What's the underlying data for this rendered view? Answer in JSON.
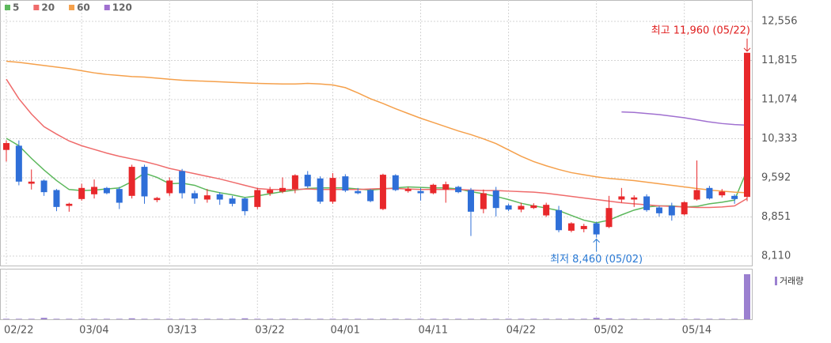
{
  "chart_data": {
    "type": "candlestick",
    "categories": [
      "02/22",
      null,
      null,
      null,
      null,
      null,
      "03/04",
      null,
      null,
      null,
      null,
      null,
      null,
      "03/13",
      null,
      null,
      null,
      null,
      null,
      null,
      "03/22",
      null,
      null,
      null,
      null,
      null,
      "04/01",
      null,
      null,
      null,
      null,
      null,
      null,
      "04/11",
      null,
      null,
      null,
      null,
      null,
      null,
      "04/22",
      null,
      null,
      null,
      null,
      null,
      null,
      "05/02",
      null,
      null,
      null,
      null,
      null,
      null,
      "05/14",
      null,
      null,
      null,
      null,
      null
    ],
    "open": [
      10120,
      10200,
      9480,
      9540,
      9360,
      9060,
      9190,
      9280,
      9400,
      9380,
      9250,
      9800,
      9170,
      9300,
      9720,
      9300,
      9180,
      9280,
      9200,
      9200,
      9040,
      9300,
      9330,
      9380,
      9650,
      9580,
      9140,
      9620,
      9340,
      9360,
      9000,
      9640,
      9340,
      9340,
      9300,
      9370,
      9420,
      9360,
      9000,
      9350,
      9070,
      8990,
      9020,
      8880,
      8980,
      8590,
      8620,
      8730,
      8660,
      9180,
      9180,
      9240,
      9030,
      9060,
      8900,
      9180,
      9400,
      9260,
      9250,
      9230
    ],
    "high": [
      10300,
      10300,
      9750,
      9560,
      9380,
      9120,
      9480,
      9560,
      9420,
      9420,
      9840,
      9840,
      9230,
      9600,
      9760,
      9350,
      9380,
      9320,
      9250,
      9220,
      9400,
      9420,
      9600,
      9660,
      9720,
      9620,
      9680,
      9660,
      9400,
      9380,
      9670,
      9660,
      9420,
      9400,
      9480,
      9520,
      9440,
      9400,
      9370,
      9420,
      9100,
      9120,
      9110,
      9120,
      9060,
      8750,
      8720,
      8760,
      9250,
      9400,
      9260,
      9280,
      9060,
      9120,
      9150,
      9920,
      9440,
      9380,
      9280,
      11960
    ],
    "low": [
      9900,
      9450,
      9370,
      9250,
      8960,
      8950,
      9160,
      9200,
      9280,
      9000,
      9200,
      9100,
      9130,
      9250,
      9200,
      9100,
      9120,
      9080,
      9050,
      8880,
      9000,
      9250,
      9300,
      9300,
      9400,
      9100,
      9100,
      9320,
      9280,
      9130,
      8980,
      9340,
      9310,
      9160,
      9280,
      9120,
      9300,
      8490,
      8920,
      8860,
      8960,
      8940,
      9000,
      8850,
      8560,
      8560,
      8560,
      8460,
      8640,
      9120,
      9040,
      8950,
      8860,
      8780,
      8880,
      9160,
      9180,
      9220,
      9100,
      9150
    ],
    "close": [
      10250,
      9520,
      9520,
      9320,
      9040,
      9100,
      9400,
      9420,
      9300,
      9120,
      9800,
      9240,
      9210,
      9540,
      9300,
      9200,
      9260,
      9180,
      9100,
      8960,
      9360,
      9360,
      9400,
      9640,
      9430,
      9140,
      9590,
      9350,
      9300,
      9150,
      9650,
      9360,
      9380,
      9300,
      9460,
      9470,
      9320,
      8950,
      9300,
      9020,
      8990,
      9060,
      9070,
      9080,
      8600,
      8730,
      8680,
      8520,
      9020,
      9240,
      9220,
      8980,
      8920,
      8880,
      9130,
      9360,
      9200,
      9330,
      9190,
      11960
    ],
    "up_color": "#e8282b",
    "down_color": "#2f6fd8",
    "series": [
      {
        "name": "5",
        "color": "#5cb85c",
        "values": [
          10340,
          10200,
          9960,
          9740,
          9540,
          9370,
          9350,
          9360,
          9380,
          9400,
          9520,
          9680,
          9600,
          9480,
          9490,
          9450,
          9360,
          9310,
          9270,
          9220,
          9250,
          9290,
          9330,
          9360,
          9390,
          9400,
          9400,
          9400,
          9380,
          9360,
          9380,
          9400,
          9420,
          9410,
          9400,
          9400,
          9380,
          9330,
          9290,
          9240,
          9180,
          9110,
          9060,
          9020,
          8970,
          8880,
          8790,
          8740,
          8790,
          8890,
          8980,
          9040,
          9060,
          9060,
          9040,
          9050,
          9100,
          9130,
          9170,
          9740
        ]
      },
      {
        "name": "20",
        "color": "#ef6b6b",
        "values": [
          11460,
          11090,
          10800,
          10560,
          10420,
          10290,
          10200,
          10130,
          10060,
          10000,
          9950,
          9900,
          9840,
          9770,
          9720,
          9670,
          9620,
          9570,
          9510,
          9450,
          9390,
          9370,
          9370,
          9370,
          9380,
          9370,
          9370,
          9370,
          9370,
          9380,
          9390,
          9390,
          9380,
          9370,
          9370,
          9370,
          9370,
          9360,
          9350,
          9350,
          9340,
          9330,
          9320,
          9300,
          9270,
          9240,
          9210,
          9180,
          9150,
          9120,
          9100,
          9080,
          9060,
          9050,
          9040,
          9030,
          9030,
          9040,
          9060,
          9200
        ]
      },
      {
        "name": "60",
        "color": "#f5a04b",
        "values": [
          11800,
          11780,
          11750,
          11720,
          11690,
          11660,
          11620,
          11580,
          11550,
          11530,
          11510,
          11500,
          11480,
          11460,
          11440,
          11430,
          11420,
          11410,
          11400,
          11390,
          11380,
          11375,
          11370,
          11370,
          11380,
          11370,
          11350,
          11300,
          11200,
          11090,
          11000,
          10900,
          10810,
          10720,
          10640,
          10560,
          10480,
          10410,
          10330,
          10240,
          10120,
          10000,
          9900,
          9820,
          9750,
          9690,
          9650,
          9610,
          9580,
          9560,
          9540,
          9510,
          9480,
          9450,
          9420,
          9390,
          9360,
          9340,
          9320,
          9310
        ]
      },
      {
        "name": "120",
        "color": "#a070d0",
        "values": [
          null,
          null,
          null,
          null,
          null,
          null,
          null,
          null,
          null,
          null,
          null,
          null,
          null,
          null,
          null,
          null,
          null,
          null,
          null,
          null,
          null,
          null,
          null,
          null,
          null,
          null,
          null,
          null,
          null,
          null,
          null,
          null,
          null,
          null,
          null,
          null,
          null,
          null,
          null,
          null,
          null,
          null,
          null,
          null,
          null,
          null,
          null,
          null,
          null,
          10840,
          10830,
          10810,
          10790,
          10760,
          10730,
          10690,
          10650,
          10620,
          10600,
          10590
        ]
      }
    ],
    "ylim": [
      7930,
      12960
    ],
    "yticks": [
      {
        "value": 12556,
        "label": "12,556"
      },
      {
        "value": 11815,
        "label": "11,815"
      },
      {
        "value": 11074,
        "label": "11,074"
      },
      {
        "value": 10333,
        "label": "10,333"
      },
      {
        "value": 9592,
        "label": "9,592"
      },
      {
        "value": 8851,
        "label": "8,851"
      },
      {
        "value": 8110,
        "label": "8,110"
      }
    ],
    "grid": true,
    "annotations": [
      {
        "text": "최고 11,960 (05/22)",
        "color": "#e02020"
      },
      {
        "text": "최저 8,460 (05/02)",
        "color": "#2a7ad5"
      }
    ],
    "volume": {
      "name": "거래량",
      "color": "#9b80d0",
      "ylim": [
        0,
        100
      ],
      "values": [
        1,
        1,
        1,
        3,
        1,
        1,
        1,
        1,
        1,
        1,
        2,
        1,
        1,
        1,
        1,
        1,
        1,
        1,
        1,
        2,
        1,
        1,
        1,
        1,
        1,
        1,
        1,
        1,
        1,
        1,
        1,
        1,
        1,
        1,
        1,
        1,
        1,
        1,
        1,
        1,
        1,
        1,
        1,
        1,
        1,
        1,
        1,
        3,
        2,
        1,
        1,
        1,
        1,
        1,
        1,
        1,
        1,
        1,
        1,
        92
      ]
    }
  }
}
